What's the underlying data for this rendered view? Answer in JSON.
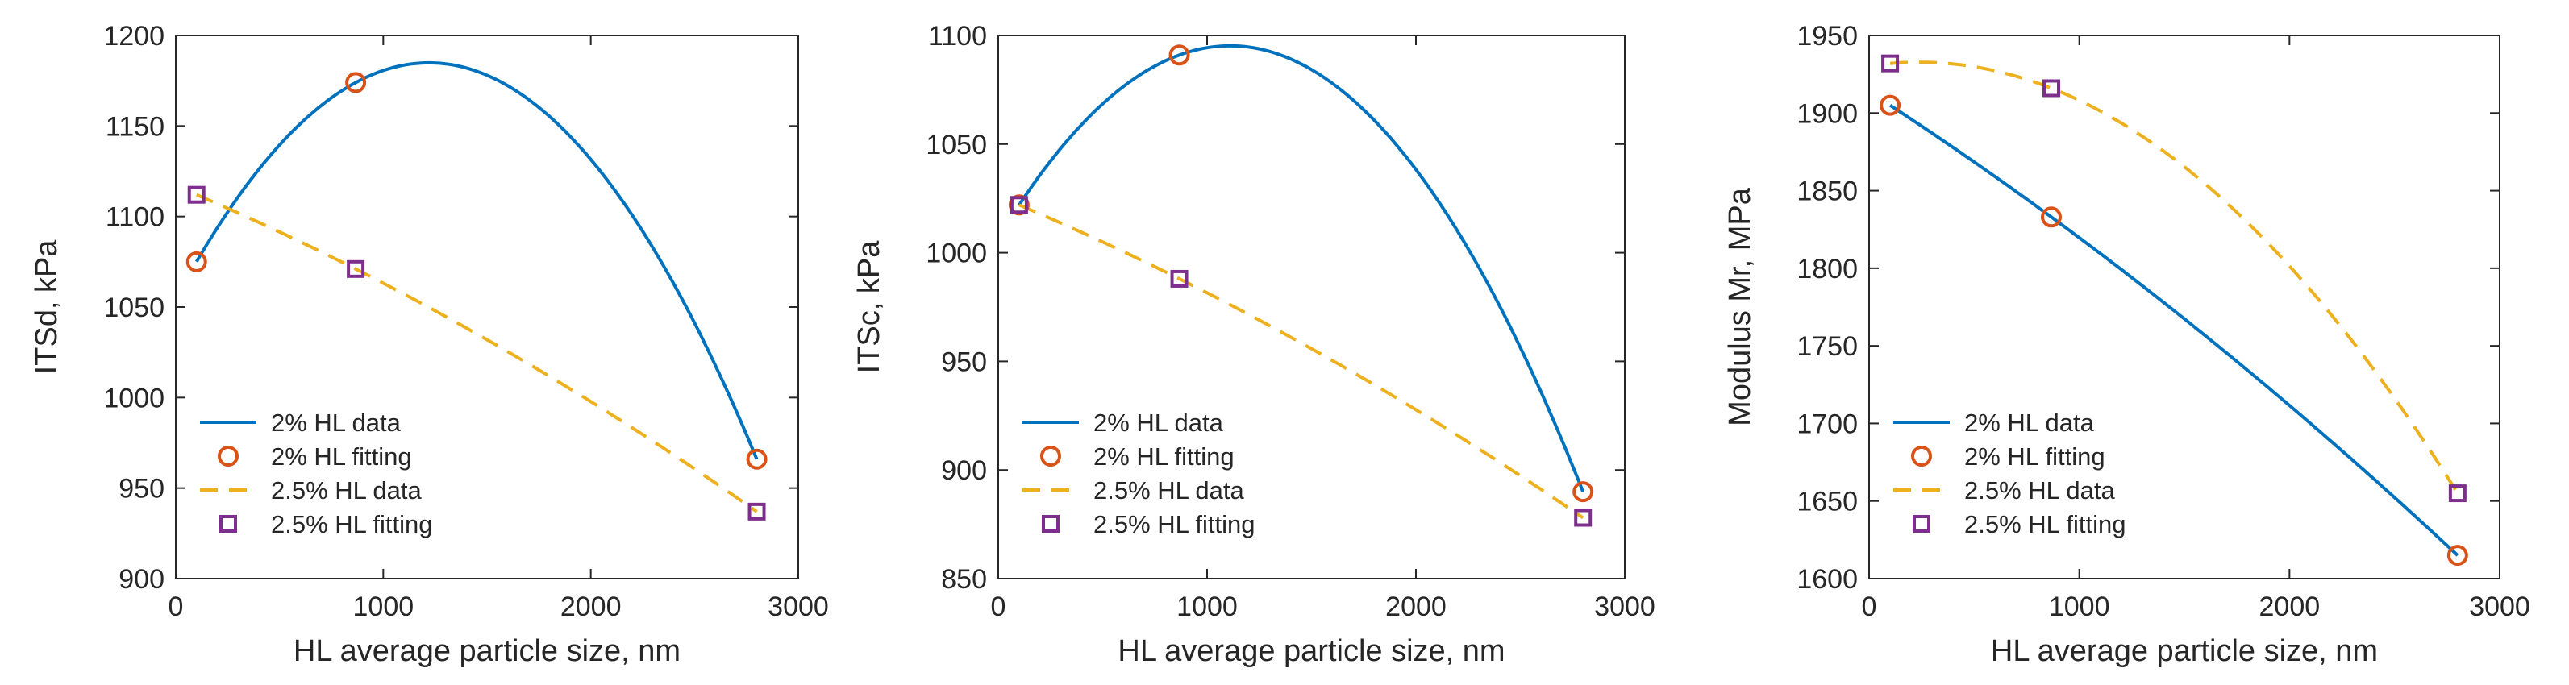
{
  "colors": {
    "series_2pct": "#0072BD",
    "series_25pct": "#EDB120",
    "marker_2pct": "#D95319",
    "marker_25pct": "#7E2F8E",
    "axis": "#262626"
  },
  "chart_data": [
    {
      "type": "line",
      "id": "itsd",
      "xlabel": "HL average particle size, nm",
      "ylabel": "ITSd, kPa",
      "xlim": [
        0,
        3000
      ],
      "ylim": [
        900,
        1200
      ],
      "xticks": [
        0,
        1000,
        2000,
        3000
      ],
      "yticks": [
        900,
        950,
        1000,
        1050,
        1100,
        1150,
        1200
      ],
      "x": [
        100,
        867,
        2800
      ],
      "legend_position": "bottom-left",
      "legend": [
        "2% HL data",
        "2% HL fitting",
        "2.5% HL data",
        "2.5% HL fitting"
      ],
      "series": [
        {
          "name": "2% HL",
          "values": [
            1075,
            1174,
            966
          ]
        },
        {
          "name": "2.5% HL",
          "values": [
            1112,
            1071,
            937
          ]
        }
      ]
    },
    {
      "type": "line",
      "id": "itsc",
      "xlabel": "HL average particle size, nm",
      "ylabel": "ITSc, kPa",
      "xlim": [
        0,
        3000
      ],
      "ylim": [
        850,
        1100
      ],
      "xticks": [
        0,
        1000,
        2000,
        3000
      ],
      "yticks": [
        850,
        900,
        950,
        1000,
        1050,
        1100
      ],
      "x": [
        100,
        867,
        2800
      ],
      "legend_position": "bottom-left",
      "legend": [
        "2% HL data",
        "2% HL fitting",
        "2.5% HL data",
        "2.5% HL fitting"
      ],
      "series": [
        {
          "name": "2% HL",
          "values": [
            1022,
            1091,
            890
          ]
        },
        {
          "name": "2.5% HL",
          "values": [
            1022,
            988,
            878
          ]
        }
      ]
    },
    {
      "type": "line",
      "id": "modulus",
      "xlabel": "HL average particle size, nm",
      "ylabel": "Modulus Mr, MPa",
      "xlim": [
        0,
        3000
      ],
      "ylim": [
        1600,
        1950
      ],
      "xticks": [
        0,
        1000,
        2000,
        3000
      ],
      "yticks": [
        1600,
        1650,
        1700,
        1750,
        1800,
        1850,
        1900,
        1950
      ],
      "x": [
        100,
        867,
        2800
      ],
      "legend_position": "bottom-left",
      "legend": [
        "2% HL data",
        "2% HL fitting",
        "2.5% HL data",
        "2.5% HL fitting"
      ],
      "series": [
        {
          "name": "2% HL",
          "values": [
            1905,
            1833,
            1615
          ]
        },
        {
          "name": "2.5% HL",
          "values": [
            1932,
            1916,
            1655
          ]
        }
      ]
    }
  ]
}
